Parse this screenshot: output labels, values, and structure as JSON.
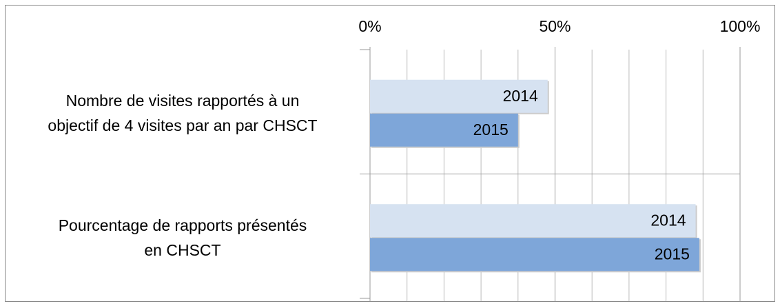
{
  "chart_data": {
    "type": "barh",
    "categories": [
      "Nombre de visites rapportés à un\nobjectif de 4 visites par an par CHSCT",
      "Pourcentage de rapports présentés\nen CHSCT"
    ],
    "series": [
      {
        "name": "2014",
        "color": "#d6e2f1",
        "values": [
          48,
          88
        ]
      },
      {
        "name": "2015",
        "color": "#7ea6d9",
        "values": [
          40,
          89
        ]
      }
    ],
    "xlim": [
      0,
      100
    ],
    "xticks": [
      {
        "value": 0,
        "label": "0%"
      },
      {
        "value": 50,
        "label": "50%"
      },
      {
        "value": 100,
        "label": "100%"
      }
    ],
    "minor_xticks": [
      10,
      20,
      30,
      40,
      60,
      70,
      80,
      90
    ],
    "grid": true
  }
}
